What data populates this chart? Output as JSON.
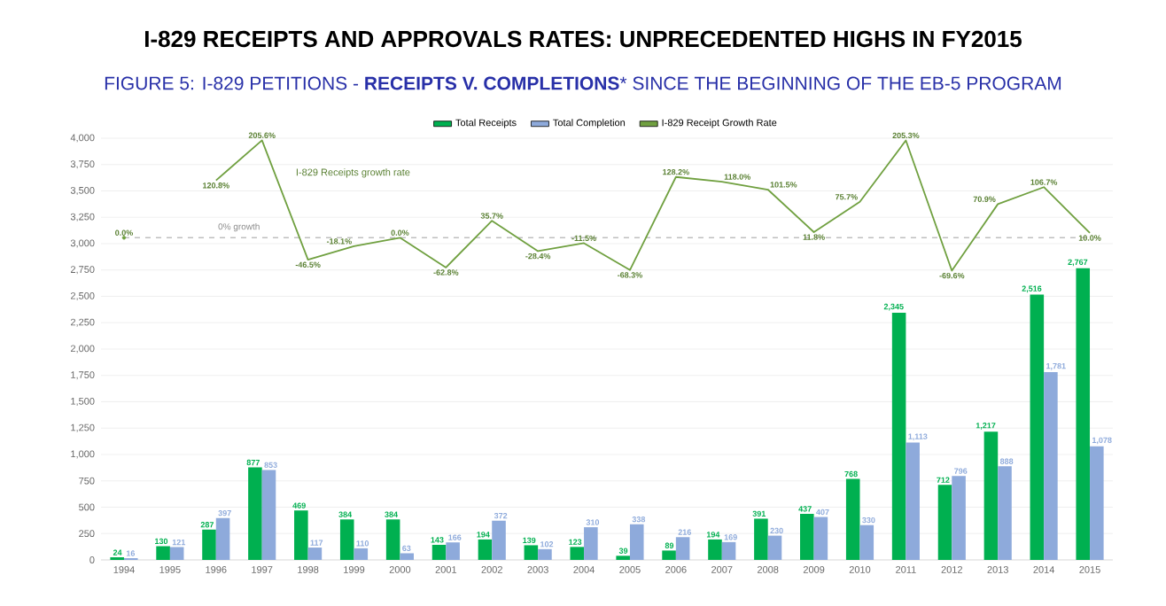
{
  "chart_data": {
    "type": "bar",
    "title": "I-829 RECEIPTS AND APPROVALS RATES:  UNPRECEDENTED HIGHS IN FY2015",
    "subtitle": "FIGURE 5: I-829 PETITIONS - **RECEIPTS V. COMPLETIONS*** SINCE THE BEGINNING OF THE EB-5 PROGRAM",
    "categories": [
      "1994",
      "1995",
      "1996",
      "1997",
      "1998",
      "1999",
      "2000",
      "2001",
      "2002",
      "2003",
      "2004",
      "2005",
      "2006",
      "2007",
      "2008",
      "2009",
      "2010",
      "2011",
      "2012",
      "2013",
      "2014",
      "2015"
    ],
    "series": [
      {
        "name": "Total Receipts",
        "color": "#00b050",
        "values": [
          24,
          130,
          287,
          877,
          469,
          384,
          384,
          143,
          194,
          139,
          123,
          39,
          89,
          194,
          391,
          437,
          768,
          2345,
          712,
          1217,
          2516,
          2767
        ],
        "value_labels": [
          "24",
          "130",
          "287",
          "877",
          "469",
          "384",
          "384",
          "143",
          "194",
          "139",
          "123",
          "39",
          "89",
          "194",
          "391",
          "437",
          "768",
          "2,345",
          "712",
          "1,217",
          "2,516",
          "2,767"
        ]
      },
      {
        "name": "Total Completion",
        "color": "#8eaadb",
        "values": [
          16,
          121,
          397,
          853,
          117,
          110,
          63,
          166,
          372,
          102,
          310,
          338,
          216,
          169,
          230,
          407,
          330,
          1113,
          796,
          888,
          1781,
          1078
        ],
        "value_labels": [
          "16",
          "121",
          "397",
          "853",
          "117",
          "110",
          "63",
          "166",
          "372",
          "102",
          "310",
          "338",
          "216",
          "169",
          "230",
          "407",
          "330",
          "1,113",
          "796",
          "888",
          "1,781",
          "1,078"
        ]
      },
      {
        "name": "I-829 Receipt Growth Rate",
        "type": "line",
        "axis": "y2",
        "color": "#70a040",
        "values": [
          0.0,
          null,
          120.8,
          205.6,
          -46.5,
          -18.1,
          0.0,
          -62.8,
          35.7,
          -28.4,
          -11.5,
          -68.3,
          128.2,
          118.0,
          101.5,
          11.8,
          75.7,
          205.3,
          -69.6,
          70.9,
          106.7,
          10.0
        ],
        "value_labels": [
          "0.0%",
          null,
          "120.8%",
          "205.6%",
          "-46.5%",
          "-18.1%",
          "0.0%",
          "-62.8%",
          "35.7%",
          "-28.4%",
          "-11.5%",
          "-68.3%",
          "128.2%",
          "118.0%",
          "101.5%",
          "11.8%",
          "75.7%",
          "205.3%",
          "-69.6%",
          "70.9%",
          "106.7%",
          "10.0%"
        ]
      }
    ],
    "ylim": [
      0,
      4000
    ],
    "yticks": [
      0,
      {
        "value": 250,
        "label": "250"
      },
      {
        "value": 500,
        "label": "500"
      },
      {
        "value": 750,
        "label": "750"
      },
      {
        "value": 1000,
        "label": "1,000"
      },
      {
        "value": 1250,
        "label": "1,250"
      },
      {
        "value": 1500,
        "label": "1,500"
      },
      {
        "value": 1750,
        "label": "1,750"
      },
      {
        "value": 2000,
        "label": "2,000"
      },
      {
        "value": 2250,
        "label": "2,250"
      },
      {
        "value": 2500,
        "label": "2,500"
      },
      {
        "value": 2750,
        "label": "2,750"
      },
      {
        "value": 3000,
        "label": "3,000"
      },
      {
        "value": 3250,
        "label": "3,250"
      },
      {
        "value": 3500,
        "label": "3,500"
      },
      {
        "value": 3750,
        "label": "3,750"
      },
      {
        "value": 4000,
        "label": "4,000"
      }
    ],
    "y2lim": [
      -680,
      210
    ],
    "ref_lines": [
      {
        "axis": "y2",
        "value": 0,
        "label": "0% growth",
        "color": "#bfbfbf",
        "line_style": "dashed"
      }
    ],
    "annotations": [
      "I-829 Receipts growth rate"
    ],
    "grid": "y",
    "legend": "top"
  }
}
